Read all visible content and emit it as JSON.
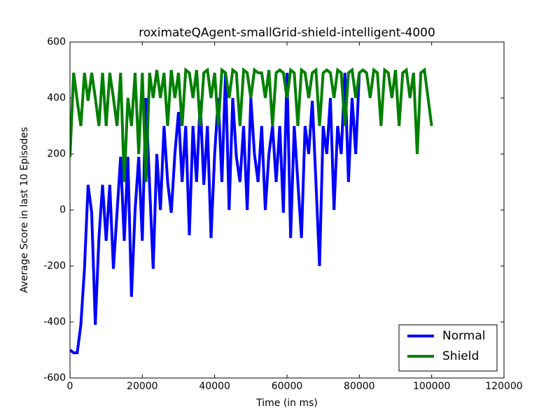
{
  "chart_data": {
    "type": "line",
    "title": "roximateQAgent-smallGrid-shield-intelligent-4000",
    "x_label": "Time (in ms)",
    "y_label": "Average Score in last 10 Episodes",
    "xlim": [
      0,
      120000
    ],
    "xticks": [
      0,
      20000,
      40000,
      60000,
      80000,
      100000,
      120000
    ],
    "ylim": [
      -600,
      600
    ],
    "yticks": [
      -600,
      -400,
      -200,
      0,
      200,
      400,
      600
    ],
    "legend": "lower right",
    "series": [
      {
        "name": "Normal",
        "color": "#0000ff",
        "x": [
          0,
          1000,
          2000,
          3000,
          4000,
          5000,
          6000,
          7000,
          8000,
          9000,
          10000,
          11000,
          12000,
          13000,
          14000,
          15000,
          16000,
          17000,
          18000,
          19000,
          20000,
          21000,
          22000,
          23000,
          24000,
          25000,
          26000,
          27000,
          28000,
          29000,
          30000,
          31000,
          32000,
          33000,
          34000,
          35000,
          36000,
          37000,
          38000,
          39000,
          40000,
          41000,
          42000,
          43000,
          44000,
          45000,
          46000,
          47000,
          48000,
          49000,
          50000,
          51000,
          52000,
          53000,
          54000,
          55000,
          56000,
          57000,
          58000,
          59000,
          60000,
          61000,
          62000,
          63000,
          64000,
          65000,
          66000,
          67000,
          68000,
          69000,
          70000,
          71000,
          72000,
          73000,
          74000,
          75000,
          76000,
          77000,
          78000,
          79000,
          80000
        ],
        "values": [
          -500,
          -510,
          -510,
          -410,
          -210,
          90,
          -10,
          -410,
          -100,
          90,
          -110,
          90,
          -210,
          -10,
          190,
          -110,
          190,
          -310,
          0,
          190,
          -110,
          400,
          90,
          -210,
          200,
          0,
          300,
          100,
          -10,
          200,
          350,
          100,
          300,
          -90,
          300,
          100,
          390,
          90,
          300,
          -100,
          200,
          400,
          100,
          490,
          0,
          400,
          190,
          100,
          300,
          0,
          400,
          200,
          100,
          300,
          0,
          200,
          300,
          100,
          300,
          -10,
          490,
          -100,
          300,
          100,
          -100,
          300,
          200,
          390,
          100,
          -200,
          300,
          200,
          400,
          0,
          300,
          200,
          490,
          100,
          400,
          200,
          490
        ]
      },
      {
        "name": "Shield",
        "color": "#008000",
        "x": [
          0,
          1000,
          2000,
          3000,
          4000,
          5000,
          6000,
          7000,
          8000,
          9000,
          10000,
          11000,
          12000,
          13000,
          14000,
          15000,
          16000,
          17000,
          18000,
          19000,
          20000,
          21000,
          22000,
          23000,
          24000,
          25000,
          26000,
          27000,
          28000,
          29000,
          30000,
          31000,
          32000,
          33000,
          34000,
          35000,
          36000,
          37000,
          38000,
          39000,
          40000,
          41000,
          42000,
          43000,
          44000,
          45000,
          46000,
          47000,
          48000,
          49000,
          50000,
          51000,
          52000,
          53000,
          54000,
          55000,
          56000,
          57000,
          58000,
          59000,
          60000,
          61000,
          62000,
          63000,
          64000,
          65000,
          66000,
          67000,
          68000,
          69000,
          70000,
          71000,
          72000,
          73000,
          74000,
          75000,
          76000,
          77000,
          78000,
          79000,
          80000,
          81000,
          82000,
          83000,
          84000,
          85000,
          86000,
          87000,
          88000,
          89000,
          90000,
          91000,
          92000,
          93000,
          94000,
          95000,
          96000,
          97000,
          98000,
          99000,
          100000
        ],
        "values": [
          190,
          490,
          390,
          300,
          490,
          390,
          490,
          400,
          300,
          490,
          300,
          490,
          400,
          300,
          490,
          100,
          400,
          300,
          490,
          200,
          490,
          100,
          490,
          400,
          500,
          400,
          490,
          300,
          500,
          400,
          490,
          300,
          500,
          490,
          400,
          500,
          300,
          490,
          500,
          400,
          490,
          300,
          500,
          490,
          400,
          500,
          490,
          300,
          500,
          490,
          400,
          500,
          490,
          490,
          400,
          500,
          300,
          490,
          500,
          490,
          400,
          500,
          490,
          300,
          500,
          490,
          400,
          490,
          500,
          300,
          490,
          500,
          490,
          400,
          500,
          490,
          300,
          490,
          500,
          400,
          490,
          500,
          490,
          400,
          500,
          490,
          300,
          500,
          490,
          400,
          500,
          300,
          490,
          500,
          400,
          490,
          200,
          490,
          500,
          400,
          300
        ]
      }
    ]
  }
}
